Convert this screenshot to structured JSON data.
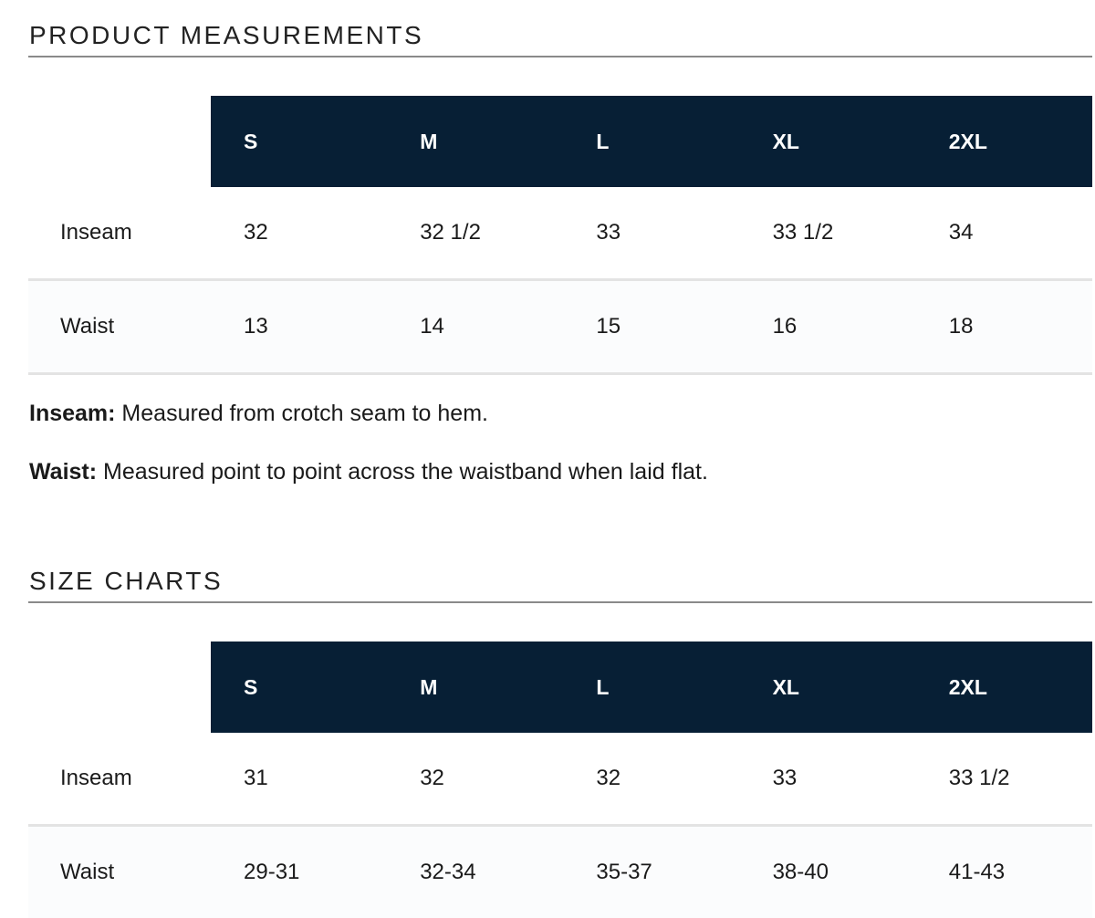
{
  "product_measurements": {
    "title": "PRODUCT MEASUREMENTS",
    "sizes": [
      "S",
      "M",
      "L",
      "XL",
      "2XL"
    ],
    "rows": [
      {
        "label": "Inseam",
        "values": [
          "32",
          "32 1/2",
          "33",
          "33 1/2",
          "34"
        ]
      },
      {
        "label": "Waist",
        "values": [
          "13",
          "14",
          "15",
          "16",
          "18"
        ]
      }
    ],
    "notes": [
      {
        "term": "Inseam:",
        "text": " Measured from crotch seam to hem."
      },
      {
        "term": "Waist:",
        "text": " Measured point to point across the waistband when laid flat."
      }
    ]
  },
  "size_charts": {
    "title": "SIZE CHARTS",
    "sizes": [
      "S",
      "M",
      "L",
      "XL",
      "2XL"
    ],
    "rows": [
      {
        "label": "Inseam",
        "values": [
          "31",
          "32",
          "32",
          "33",
          "33 1/2"
        ]
      },
      {
        "label": "Waist",
        "values": [
          "29-31",
          "32-34",
          "35-37",
          "38-40",
          "41-43"
        ]
      }
    ]
  },
  "colors": {
    "header_background": "#071f35",
    "header_text": "#ffffff",
    "row_divider": "#e3e3e3",
    "section_rule": "#8a8a8a"
  }
}
